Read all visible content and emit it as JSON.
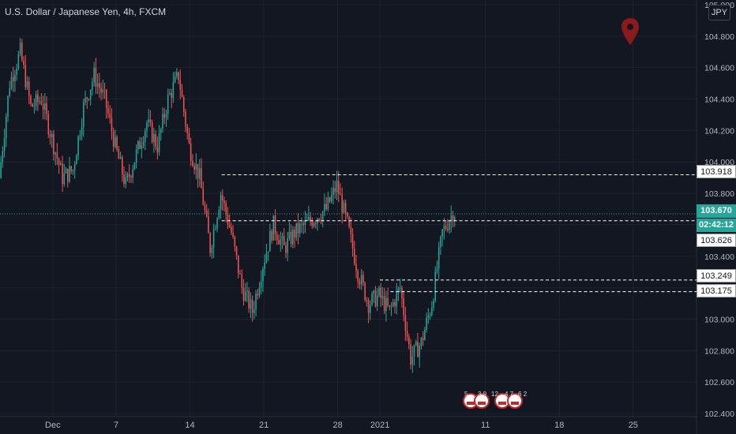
{
  "header": {
    "symbol_title": "U.S. Dollar / Japanese Yen, 4h, FXCM",
    "currency_button": "JPY"
  },
  "price_tags": {
    "resistance_top": "103.918",
    "last_price": "103.670",
    "countdown": "02:42:12",
    "level_mid": "103.626",
    "level_upper_support": "103.249",
    "level_lower_support": "103.175"
  },
  "event_badges": [
    "5",
    "3 9",
    "12",
    "4 7",
    "6 2"
  ],
  "colors": {
    "up": "#26a69a",
    "down": "#ef5350",
    "background": "#131722",
    "grid": "#1e222d",
    "marker": "#8b1a1a"
  },
  "chart_data": {
    "type": "candlestick",
    "title": "U.S. Dollar / Japanese Yen, 4h, FXCM",
    "xlabel": "",
    "ylabel": "",
    "y_ticks": [
      102.4,
      102.6,
      102.8,
      103.0,
      103.2,
      103.4,
      103.6,
      103.8,
      104.0,
      104.2,
      104.4,
      104.6,
      104.8,
      105.0
    ],
    "y_tick_labels": [
      "102.400",
      "102.600",
      "102.800",
      "103.000",
      "103.200",
      "103.400",
      "103.600",
      "103.800",
      "104.000",
      "104.200",
      "104.400",
      "104.600",
      "104.800",
      "105.000"
    ],
    "ylim": [
      102.38,
      105.03
    ],
    "x_tick_labels": [
      "Dec",
      "7",
      "14",
      "21",
      "28",
      "2021",
      "11",
      "18",
      "25"
    ],
    "x_tick_dates": [
      "2020-12-01",
      "2020-12-07",
      "2020-12-14",
      "2020-12-21",
      "2020-12-28",
      "2021-01-01",
      "2021-01-11",
      "2021-01-18",
      "2021-01-25"
    ],
    "x_range": [
      "2020-11-26",
      "2021-01-31"
    ],
    "horizontal_levels": [
      {
        "price": 103.918,
        "start": "2020-12-17",
        "style": "dashed"
      },
      {
        "price": 103.626,
        "start": "2020-12-17",
        "style": "dashed"
      },
      {
        "price": 103.249,
        "start": "2021-01-01",
        "style": "dashed"
      },
      {
        "price": 103.175,
        "start": "2021-01-02",
        "style": "dashed"
      },
      {
        "price": 103.67,
        "start": "2020-11-26",
        "style": "dotted",
        "note": "last price"
      }
    ],
    "price_path": [
      [
        "2020-11-26",
        103.9
      ],
      [
        "2020-11-27",
        104.5
      ],
      [
        "2020-11-28",
        104.7
      ],
      [
        "2020-11-29",
        104.35
      ],
      [
        "2020-11-30",
        104.4
      ],
      [
        "2020-12-01",
        104.15
      ],
      [
        "2020-12-02",
        103.9
      ],
      [
        "2020-12-03",
        103.95
      ],
      [
        "2020-12-04",
        104.35
      ],
      [
        "2020-12-05",
        104.55
      ],
      [
        "2020-12-06",
        104.4
      ],
      [
        "2020-12-07",
        104.1
      ],
      [
        "2020-12-08",
        103.85
      ],
      [
        "2020-12-09",
        104.05
      ],
      [
        "2020-12-10",
        104.25
      ],
      [
        "2020-12-11",
        104.1
      ],
      [
        "2020-12-12",
        104.4
      ],
      [
        "2020-12-13",
        104.55
      ],
      [
        "2020-12-14",
        104.1
      ],
      [
        "2020-12-15",
        103.9
      ],
      [
        "2020-12-16",
        103.45
      ],
      [
        "2020-12-17",
        103.8
      ],
      [
        "2020-12-18",
        103.55
      ],
      [
        "2020-12-19",
        103.2
      ],
      [
        "2020-12-20",
        103.05
      ],
      [
        "2020-12-21",
        103.35
      ],
      [
        "2020-12-22",
        103.6
      ],
      [
        "2020-12-23",
        103.45
      ],
      [
        "2020-12-24",
        103.55
      ],
      [
        "2020-12-25",
        103.6
      ],
      [
        "2020-12-26",
        103.65
      ],
      [
        "2020-12-27",
        103.7
      ],
      [
        "2020-12-28",
        103.85
      ],
      [
        "2020-12-29",
        103.6
      ],
      [
        "2020-12-30",
        103.3
      ],
      [
        "2020-12-31",
        103.1
      ],
      [
        "2021-01-01",
        103.15
      ],
      [
        "2021-01-02",
        103.05
      ],
      [
        "2021-01-03",
        103.2
      ],
      [
        "2021-01-04",
        102.75
      ],
      [
        "2021-01-05",
        102.85
      ],
      [
        "2021-01-06",
        103.1
      ],
      [
        "2021-01-07",
        103.55
      ],
      [
        "2021-01-08",
        103.68
      ]
    ]
  }
}
